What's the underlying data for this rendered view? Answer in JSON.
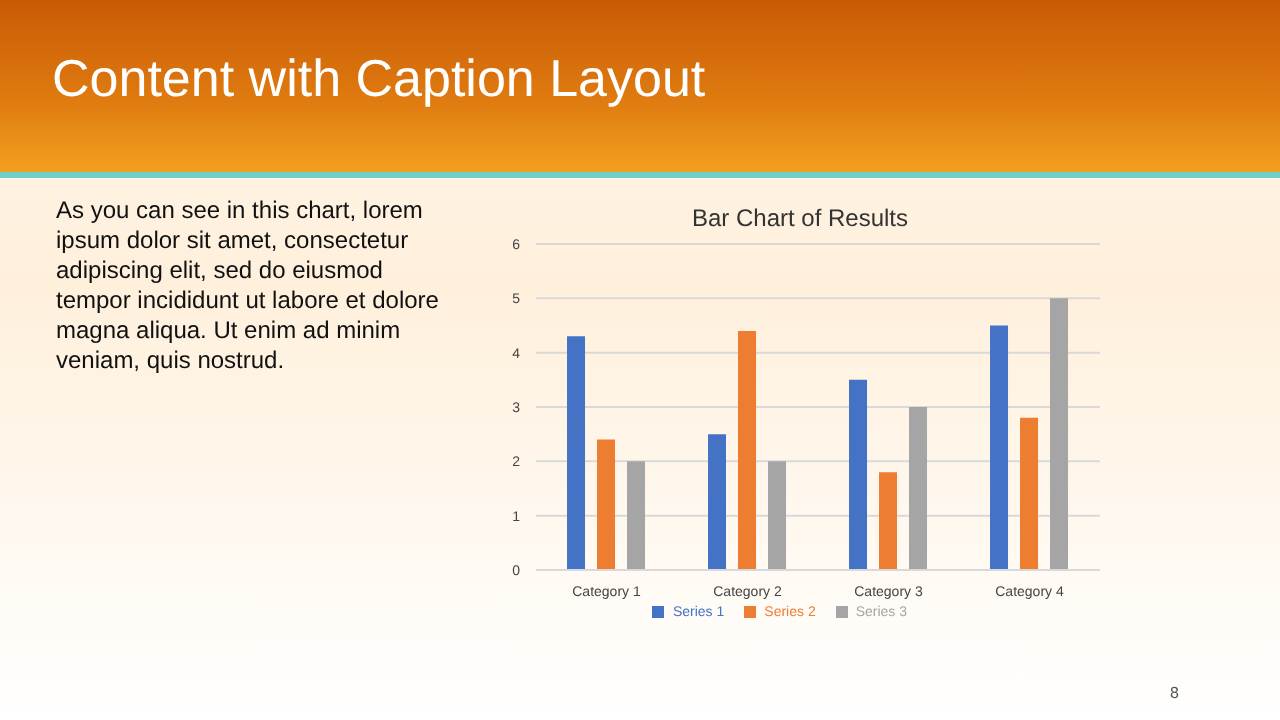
{
  "chart_data": {
    "type": "bar",
    "title": "Content with Caption Layout",
    "subtitle": "Bar Chart of Results",
    "annotations": [
      "As you can see in this chart, lorem ipsum dolor sit amet, consectetur adipiscing elit, sed do eiusmod tempor incididunt ut labore et dolore magna aliqua. Ut enim ad minim veniam, quis nostrud.",
      "8"
    ],
    "categories": [
      "Category 1",
      "Category 2",
      "Category 3",
      "Category 4"
    ],
    "series": [
      {
        "name": "Series 1",
        "color": "#4472c4",
        "values": [
          4.3,
          2.5,
          3.5,
          4.5
        ]
      },
      {
        "name": "Series 2",
        "color": "#ed7d31",
        "values": [
          2.4,
          4.4,
          1.8,
          2.8
        ]
      },
      {
        "name": "Series 3",
        "color": "#a5a5a5",
        "values": [
          2,
          2,
          3,
          5
        ]
      }
    ],
    "ylim": [
      0,
      6
    ],
    "yticks": [
      0,
      1,
      2,
      3,
      4,
      5,
      6
    ],
    "grid": "y",
    "legend": "bottom"
  }
}
